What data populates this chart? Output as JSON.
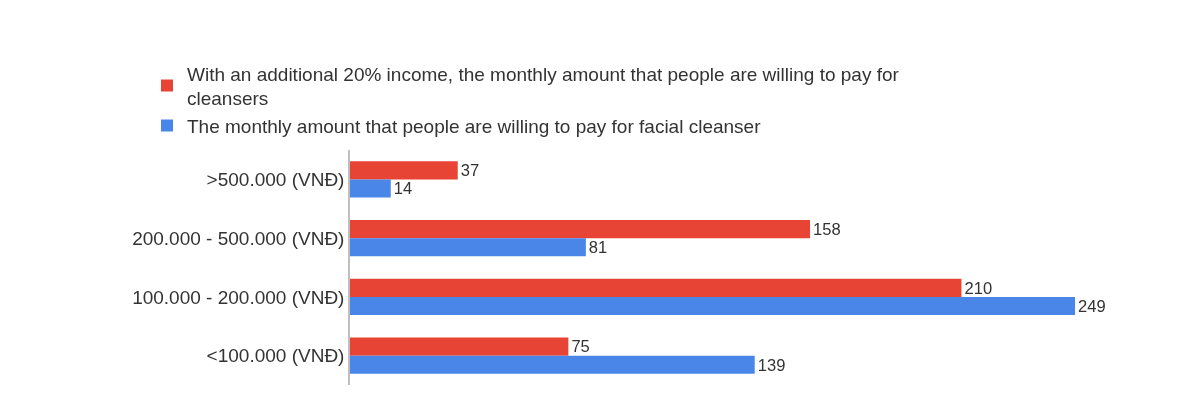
{
  "chart_data": {
    "type": "bar",
    "orientation": "horizontal",
    "categories": [
      ">500.000 (VNĐ)",
      "200.000 - 500.000 (VNĐ)",
      "100.000 - 200.000 (VNĐ)",
      "<100.000 (VNĐ)"
    ],
    "series": [
      {
        "name": "With an additional 20% income, the monthly amount that people are willing to pay for cleansers",
        "color": "#e84435",
        "values": [
          37,
          158,
          210,
          75
        ]
      },
      {
        "name": "The monthly amount that people are willing to pay for facial cleanser",
        "color": "#4a86e8",
        "values": [
          14,
          81,
          249,
          139
        ]
      }
    ],
    "data_labels": true,
    "legend": "top"
  }
}
